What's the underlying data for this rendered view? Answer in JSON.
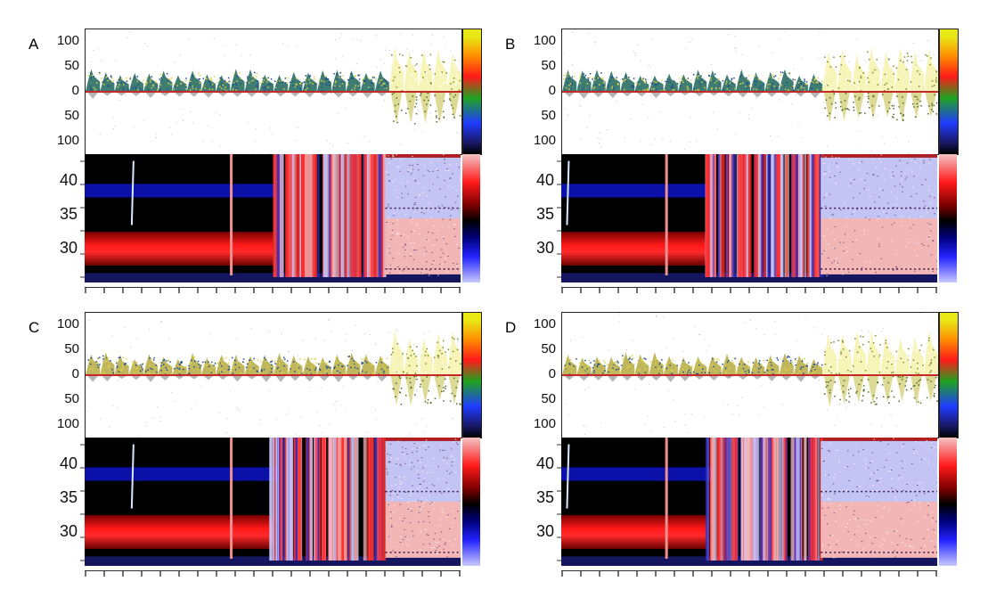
{
  "figure": {
    "panels": [
      {
        "id": "A",
        "letter": "A"
      },
      {
        "id": "B",
        "letter": "B"
      },
      {
        "id": "C",
        "letter": "C"
      },
      {
        "id": "D",
        "letter": "D"
      }
    ]
  },
  "colors": {
    "spectral_palette": [
      "#000000",
      "#1a1a6e",
      "#1f3cff",
      "#1fa31f",
      "#e8e814",
      "#ff8a00",
      "#ff1a1a",
      "#ffffc8"
    ],
    "velocity_palette": [
      "#f4c4c4",
      "#ff1a1a",
      "#7a0000",
      "#000000",
      "#00007a",
      "#2222ff",
      "#c8c8ff"
    ],
    "doppler_fill": "#2a6f63",
    "aliased_fill": "#f6f3b0",
    "baseline": "#c62828"
  },
  "chart_data": [
    {
      "panel": "A",
      "type": "heatmap",
      "subplots": [
        {
          "name": "spectrum",
          "yticks": [
            "100",
            "50",
            "0",
            "50",
            "100"
          ],
          "ylim": [
            -125,
            125
          ],
          "colorbar": true
        },
        {
          "name": "velocity_map",
          "yticks": [
            "40",
            "35",
            "30"
          ],
          "ylim": [
            25,
            44
          ],
          "colorbar": true
        }
      ],
      "x_ticks_count": 21,
      "transition_fraction": 0.8,
      "spike_positions": [
        0.13,
        0.39
      ]
    },
    {
      "panel": "B",
      "type": "heatmap",
      "subplots": [
        {
          "name": "spectrum",
          "yticks": [
            "100",
            "50",
            "0",
            "50",
            "100"
          ],
          "ylim": [
            -125,
            125
          ],
          "colorbar": true
        },
        {
          "name": "velocity_map",
          "yticks": [
            "40",
            "35",
            "30"
          ],
          "ylim": [
            25,
            44
          ],
          "colorbar": true
        }
      ],
      "x_ticks_count": 21,
      "transition_fraction": 0.69,
      "spike_positions": [
        0.02,
        0.28
      ]
    },
    {
      "panel": "C",
      "type": "heatmap",
      "subplots": [
        {
          "name": "spectrum",
          "yticks": [
            "100",
            "50",
            "0",
            "50",
            "100"
          ],
          "ylim": [
            -125,
            125
          ],
          "colorbar": true
        },
        {
          "name": "velocity_map",
          "yticks": [
            "40",
            "35",
            "30"
          ],
          "ylim": [
            25,
            44
          ],
          "colorbar": true
        }
      ],
      "x_ticks_count": 21,
      "transition_fraction": 0.8,
      "spike_positions": [
        0.13,
        0.39
      ]
    },
    {
      "panel": "D",
      "type": "heatmap",
      "subplots": [
        {
          "name": "spectrum",
          "yticks": [
            "100",
            "50",
            "0",
            "50",
            "100"
          ],
          "ylim": [
            -125,
            125
          ],
          "colorbar": true
        },
        {
          "name": "velocity_map",
          "yticks": [
            "40",
            "35",
            "30"
          ],
          "ylim": [
            25,
            44
          ],
          "colorbar": true
        }
      ],
      "x_ticks_count": 21,
      "transition_fraction": 0.69,
      "spike_positions": [
        0.02,
        0.28
      ]
    }
  ]
}
